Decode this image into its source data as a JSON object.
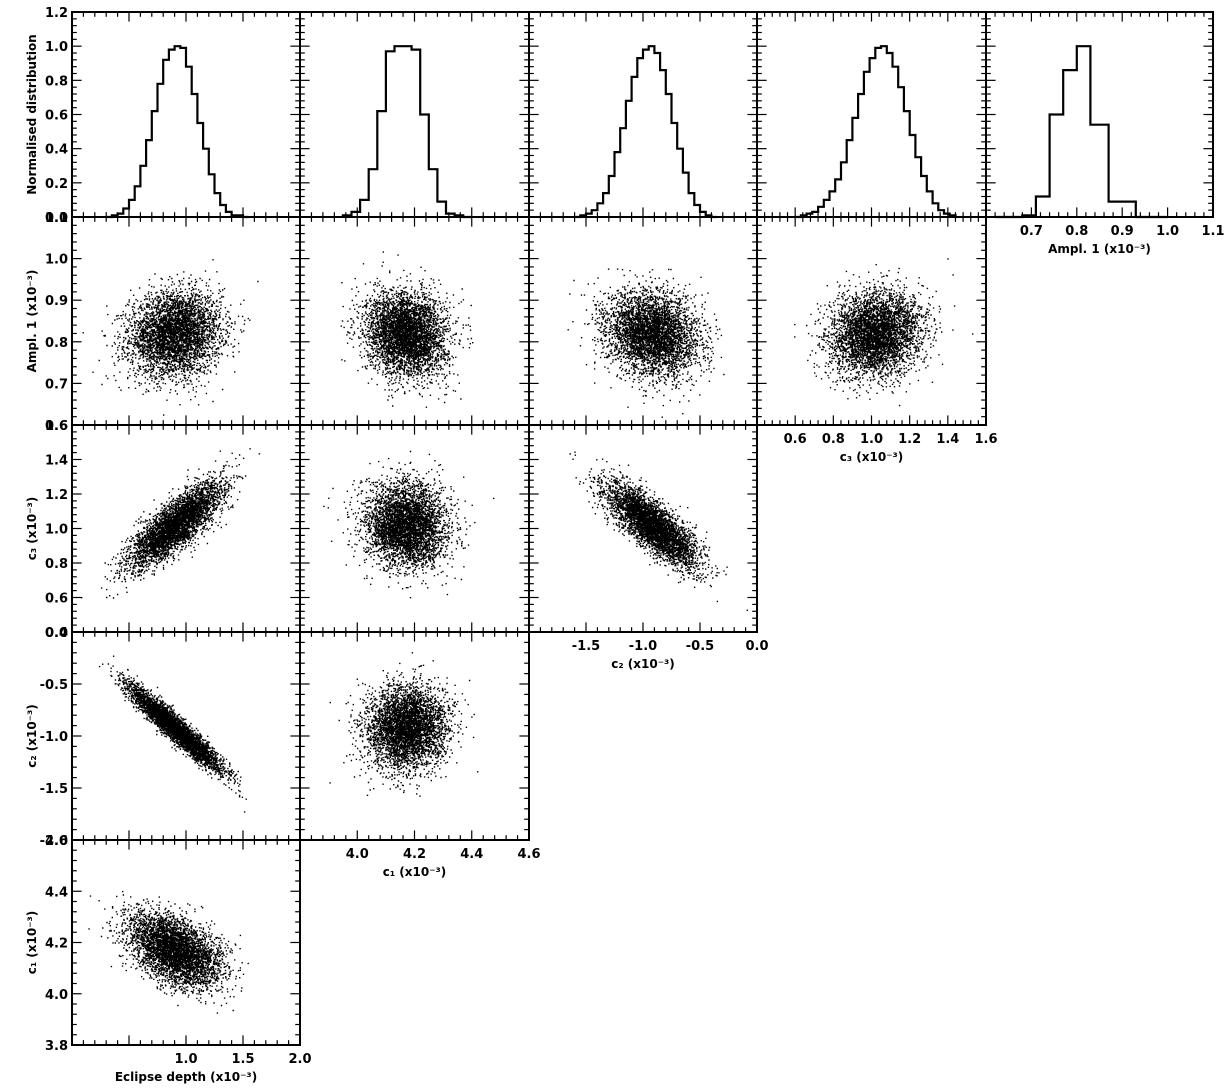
{
  "labels": {
    "ylabel_hist": "Normalised distribution",
    "eclipse": "Eclipse depth (x10⁻³)",
    "c1": "c₁ (x10⁻³)",
    "c2": "c₂ (x10⁻³)",
    "c3": "c₃ (x10⁻³)",
    "ampl1": "Ampl. 1 (x10⁻³)"
  },
  "chart_data": {
    "type": "corner",
    "parameters": [
      {
        "key": "eclipse",
        "range": [
          0.0,
          2.0
        ],
        "ticks": [
          "0.5",
          "1.0",
          "1.5",
          "2.0"
        ],
        "tickvals": [
          0.5,
          1.0,
          1.5,
          2.0
        ],
        "mean": 0.9,
        "sd": 0.2
      },
      {
        "key": "c1",
        "range": [
          3.8,
          4.6
        ],
        "ticks": [
          "3.8",
          "4.0",
          "4.2",
          "4.4",
          "4.6"
        ],
        "tickvals": [
          3.8,
          4.0,
          4.2,
          4.4,
          4.6
        ],
        "mean": 4.17,
        "sd": 0.07
      },
      {
        "key": "c2",
        "range": [
          -2.0,
          0.0
        ],
        "ticks": [
          "-2.0",
          "-1.5",
          "-1.0",
          "-0.5",
          "0.0"
        ],
        "tickvals": [
          -2.0,
          -1.5,
          -1.0,
          -0.5,
          0.0
        ],
        "mean": -0.92,
        "sd": 0.2
      },
      {
        "key": "c3",
        "range": [
          0.4,
          1.6
        ],
        "ticks": [
          "0.4",
          "0.6",
          "0.8",
          "1.0",
          "1.2",
          "1.4",
          "1.6"
        ],
        "tickvals": [
          0.4,
          0.6,
          0.8,
          1.0,
          1.2,
          1.4,
          1.6
        ],
        "mean": 1.02,
        "sd": 0.12
      },
      {
        "key": "ampl1",
        "range": [
          0.6,
          1.1
        ],
        "ticks": [
          "0.6",
          "0.7",
          "0.8",
          "0.9",
          "1.0",
          "1.1"
        ],
        "tickvals": [
          0.6,
          0.7,
          0.8,
          0.9,
          1.0,
          1.1
        ],
        "mean": 0.82,
        "sd": 0.05
      }
    ],
    "correlations": [
      {
        "pair": [
          "eclipse",
          "c1"
        ],
        "rho": -0.45
      },
      {
        "pair": [
          "eclipse",
          "c2"
        ],
        "rho": -0.95
      },
      {
        "pair": [
          "eclipse",
          "c3"
        ],
        "rho": 0.8
      },
      {
        "pair": [
          "eclipse",
          "ampl1"
        ],
        "rho": 0.1
      },
      {
        "pair": [
          "c1",
          "c2"
        ],
        "rho": 0.05
      },
      {
        "pair": [
          "c1",
          "c3"
        ],
        "rho": -0.05
      },
      {
        "pair": [
          "c1",
          "ampl1"
        ],
        "rho": -0.1
      },
      {
        "pair": [
          "c2",
          "c3"
        ],
        "rho": -0.8
      },
      {
        "pair": [
          "c2",
          "ampl1"
        ],
        "rho": -0.15
      },
      {
        "pair": [
          "c3",
          "ampl1"
        ],
        "rho": 0.15
      }
    ],
    "hist_y": {
      "range": [
        0.0,
        1.2
      ],
      "ticks": [
        "0.0",
        "0.2",
        "0.4",
        "0.6",
        "0.8",
        "1.0",
        "1.2"
      ],
      "tickvals": [
        0.0,
        0.2,
        0.4,
        0.6,
        0.8,
        1.0,
        1.2
      ]
    },
    "histograms": {
      "eclipse": {
        "edges": [
          0.3,
          0.35,
          0.4,
          0.45,
          0.5,
          0.55,
          0.6,
          0.65,
          0.7,
          0.75,
          0.8,
          0.85,
          0.9,
          0.95,
          1.0,
          1.05,
          1.1,
          1.15,
          1.2,
          1.25,
          1.3,
          1.35,
          1.4,
          1.45,
          1.5,
          1.55
        ],
        "values": [
          0.0,
          0.01,
          0.02,
          0.05,
          0.1,
          0.18,
          0.3,
          0.45,
          0.62,
          0.78,
          0.92,
          0.98,
          1.0,
          0.99,
          0.88,
          0.72,
          0.55,
          0.4,
          0.25,
          0.14,
          0.07,
          0.03,
          0.01,
          0.01,
          0.0
        ]
      },
      "c1": {
        "edges": [
          3.95,
          3.98,
          4.01,
          4.04,
          4.07,
          4.1,
          4.13,
          4.16,
          4.19,
          4.22,
          4.25,
          4.28,
          4.31,
          4.34,
          4.37,
          4.4
        ],
        "values": [
          0.01,
          0.03,
          0.1,
          0.28,
          0.62,
          0.97,
          1.0,
          1.0,
          0.98,
          0.6,
          0.28,
          0.09,
          0.02,
          0.01,
          0.0
        ]
      },
      "c2": {
        "edges": [
          -1.6,
          -1.55,
          -1.5,
          -1.45,
          -1.4,
          -1.35,
          -1.3,
          -1.25,
          -1.2,
          -1.15,
          -1.1,
          -1.05,
          -1.0,
          -0.95,
          -0.9,
          -0.85,
          -0.8,
          -0.75,
          -0.7,
          -0.65,
          -0.6,
          -0.55,
          -0.5,
          -0.45,
          -0.4,
          -0.35
        ],
        "values": [
          0.0,
          0.01,
          0.02,
          0.04,
          0.08,
          0.14,
          0.24,
          0.38,
          0.52,
          0.68,
          0.82,
          0.93,
          0.98,
          1.0,
          0.96,
          0.86,
          0.72,
          0.55,
          0.4,
          0.26,
          0.14,
          0.07,
          0.03,
          0.01,
          0.0
        ]
      },
      "c3": {
        "edges": [
          0.6,
          0.63,
          0.66,
          0.69,
          0.72,
          0.75,
          0.78,
          0.81,
          0.84,
          0.87,
          0.9,
          0.93,
          0.96,
          0.99,
          1.02,
          1.05,
          1.08,
          1.11,
          1.14,
          1.17,
          1.2,
          1.23,
          1.26,
          1.29,
          1.32,
          1.35,
          1.38,
          1.41,
          1.44
        ],
        "values": [
          0.0,
          0.01,
          0.02,
          0.03,
          0.06,
          0.1,
          0.15,
          0.22,
          0.32,
          0.45,
          0.58,
          0.72,
          0.85,
          0.93,
          0.99,
          1.0,
          0.96,
          0.88,
          0.76,
          0.62,
          0.48,
          0.35,
          0.24,
          0.15,
          0.08,
          0.04,
          0.02,
          0.01
        ]
      },
      "ampl1": {
        "edges": [
          0.62,
          0.68,
          0.71,
          0.74,
          0.77,
          0.8,
          0.83,
          0.87,
          0.93,
          1.0
        ],
        "values": [
          0.0,
          0.01,
          0.12,
          0.6,
          0.86,
          1.0,
          0.54,
          0.09,
          0.0
        ]
      }
    }
  }
}
